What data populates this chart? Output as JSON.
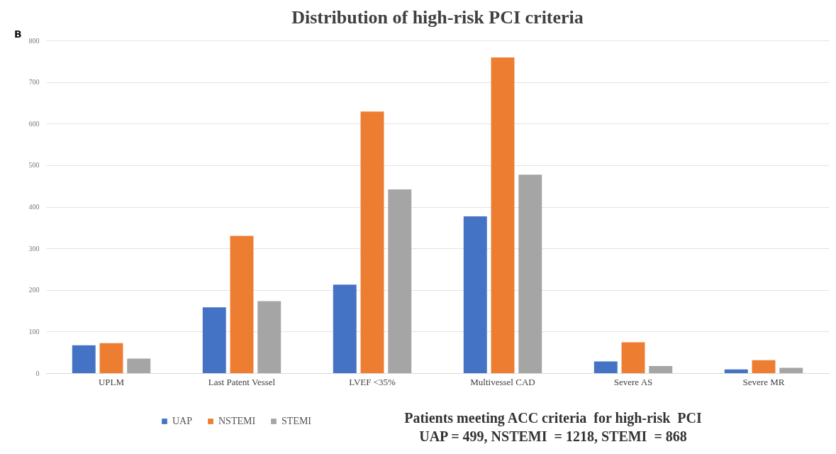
{
  "chart_data": {
    "type": "bar",
    "title": "Distribution of high-risk PCI criteria",
    "categories": [
      "UPLM",
      "Last Patent Vessel",
      "LVEF <35%",
      "Multivessel CAD",
      "Severe AS",
      "Severe MR"
    ],
    "series": [
      {
        "name": "UAP",
        "color": "#4472c4",
        "values": [
          67,
          158,
          213,
          377,
          28,
          9
        ]
      },
      {
        "name": "NSTEMI",
        "color": "#ed7d31",
        "values": [
          72,
          330,
          629,
          759,
          74,
          31
        ]
      },
      {
        "name": "STEMI",
        "color": "#a5a5a5",
        "values": [
          35,
          173,
          442,
          477,
          17,
          13
        ]
      }
    ],
    "ylim": [
      0,
      800
    ],
    "yticks": [
      0,
      100,
      200,
      300,
      400,
      500,
      600,
      700,
      800
    ],
    "grid": "y",
    "legend": "bottom left",
    "annotations": [
      "B",
      "Patients meeting ACC criteria  for high-risk  PCI",
      "UAP = 499, NSTEMI  = 1218, STEMI  = 868"
    ]
  }
}
